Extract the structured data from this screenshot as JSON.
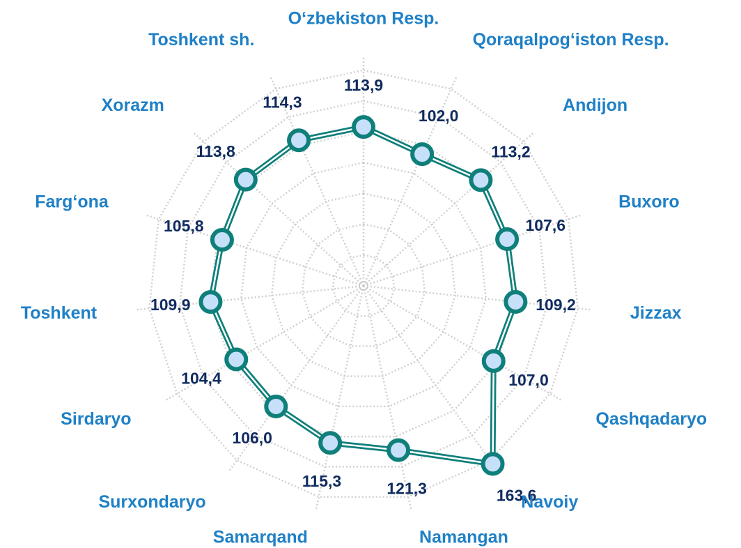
{
  "chart_data": {
    "type": "radar",
    "categories": [
      "O‘zbekiston Resp.",
      "Qoraqalpog‘iston Resp.",
      "Andijon",
      "Buxoro",
      "Jizzax",
      "Qashqadaryo",
      "Navoiy",
      "Namangan",
      "Samarqand",
      "Surxondaryo",
      "Sirdaryo",
      "Toshkent",
      "Farg‘ona",
      "Xorazm",
      "Toshkent sh."
    ],
    "values": [
      113.9,
      102.0,
      113.2,
      107.6,
      109.2,
      107.0,
      163.6,
      121.3,
      115.3,
      106.0,
      104.4,
      109.9,
      105.8,
      113.8,
      114.3
    ],
    "value_labels": [
      "113,9",
      "102,0",
      "113,2",
      "107,6",
      "109,2",
      "107,0",
      "163,6",
      "121,3",
      "115,3",
      "106,0",
      "104,4",
      "109,9",
      "105,8",
      "113,8",
      "114,3"
    ],
    "color": "#0f7f7a",
    "marker_fill": "#c7e0fa",
    "ylim": [
      -15,
      170
    ],
    "yticks": [
      {
        "value": 10,
        "label": "10,0"
      },
      {
        "value": 35,
        "label": "35,0"
      },
      {
        "value": 60,
        "label": "60,0"
      },
      {
        "value": 85,
        "label": "85,0"
      },
      {
        "value": 110,
        "label": "110,0"
      },
      {
        "value": 135,
        "label": "135,0"
      },
      {
        "value": 160,
        "label": "160,0"
      }
    ],
    "grid": true
  }
}
